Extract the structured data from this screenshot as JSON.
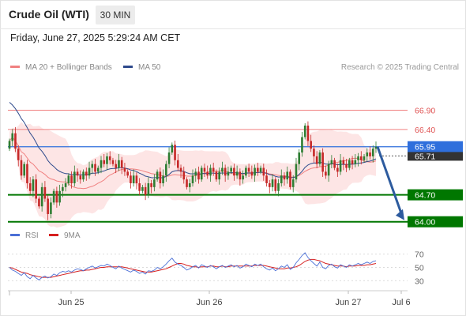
{
  "header": {
    "instrument": "Crude Oil (WTI)",
    "interval": "30 MIN",
    "datetime": "Friday, June 27, 2025 5:29:24 AM CET"
  },
  "legend": {
    "ma20_label": "MA 20 + Bollinger Bands",
    "ma50_label": "MA 50",
    "credit": "Research © 2025 Trading Central",
    "rsi_label": "RSI",
    "rsi_ma_label": "9MA"
  },
  "colors": {
    "ma20": "#f08080",
    "ma50": "#2e4a8c",
    "band_fill": "#fde0e0",
    "resistance": "#f08080",
    "support": "#007700",
    "current": "#2f6fdc",
    "last_price_bg": "#333333",
    "arrow": "#2d5b9e",
    "candle_up": "#2e7d32",
    "candle_down": "#c62828",
    "rsi": "#4a6fd6",
    "rsi_ma": "#d62020"
  },
  "chart_data": [
    {
      "type": "candlestick",
      "x_axis": {
        "ticks": [
          "Jun 25",
          "Jun 26",
          "Jun 27",
          "Jul 6"
        ]
      },
      "y_range": [
        63.85,
        67.3
      ],
      "price_levels": [
        {
          "value": 66.9,
          "label": "66.90",
          "kind": "resistance"
        },
        {
          "value": 66.4,
          "label": "66.40",
          "kind": "resistance"
        },
        {
          "value": 65.95,
          "label": "65.95",
          "kind": "current"
        },
        {
          "value": 65.71,
          "label": "65.71",
          "kind": "last"
        },
        {
          "value": 64.7,
          "label": "64.70",
          "kind": "support"
        },
        {
          "value": 64.0,
          "label": "64.00",
          "kind": "support"
        }
      ],
      "forecast": {
        "from": 65.95,
        "to": 64.0,
        "direction": "down"
      },
      "close": [
        66.1,
        66.3,
        65.9,
        65.6,
        65.2,
        65.5,
        65.0,
        64.8,
        65.1,
        64.6,
        64.4,
        64.9,
        64.6,
        64.2,
        64.5,
        64.8,
        64.5,
        64.8,
        64.9,
        65.0,
        65.2,
        65.0,
        65.3,
        65.2,
        65.1,
        65.3,
        65.2,
        65.4,
        65.5,
        65.3,
        65.4,
        65.6,
        65.5,
        65.7,
        65.6,
        65.5,
        65.4,
        65.6,
        65.4,
        65.3,
        65.2,
        65.0,
        65.2,
        65.0,
        64.8,
        64.9,
        64.7,
        65.0,
        64.9,
        65.1,
        65.3,
        65.0,
        65.2,
        65.5,
        65.8,
        66.0,
        65.6,
        65.4,
        65.3,
        65.1,
        64.9,
        65.0,
        65.2,
        65.3,
        65.1,
        65.4,
        65.3,
        65.2,
        65.4,
        65.3,
        65.1,
        65.3,
        65.4,
        65.2,
        65.3,
        65.4,
        65.2,
        65.3,
        65.1,
        65.2,
        65.4,
        65.3,
        65.2,
        65.4,
        65.3,
        65.4,
        65.2,
        65.0,
        64.9,
        65.1,
        64.8,
        65.0,
        65.2,
        65.1,
        65.3,
        64.9,
        65.1,
        65.5,
        65.8,
        66.2,
        66.5,
        66.1,
        65.9,
        65.7,
        65.5,
        65.8,
        65.3,
        65.2,
        65.5,
        65.6,
        65.4,
        65.3,
        65.6,
        65.5,
        65.4,
        65.6,
        65.5,
        65.6,
        65.7,
        65.6,
        65.7,
        65.8,
        65.7,
        65.9,
        65.95
      ]
    },
    {
      "type": "line",
      "name": "RSI",
      "y_range": [
        22,
        78
      ],
      "ticks": [
        70,
        50,
        30
      ],
      "rsi": [
        50,
        46,
        44,
        41,
        38,
        42,
        36,
        33,
        38,
        34,
        31,
        35,
        37,
        34,
        36,
        40,
        38,
        42,
        44,
        43,
        45,
        43,
        46,
        48,
        47,
        45,
        48,
        50,
        52,
        49,
        51,
        53,
        52,
        55,
        53,
        50,
        48,
        52,
        49,
        47,
        45,
        43,
        46,
        44,
        41,
        43,
        40,
        45,
        44,
        46,
        50,
        48,
        51,
        55,
        60,
        64,
        58,
        55,
        53,
        50,
        46,
        48,
        51,
        53,
        49,
        54,
        52,
        50,
        53,
        51,
        48,
        51,
        53,
        50,
        52,
        54,
        51,
        53,
        49,
        51,
        55,
        53,
        51,
        55,
        53,
        55,
        51,
        48,
        46,
        49,
        45,
        48,
        52,
        50,
        54,
        47,
        50,
        57,
        62,
        68,
        72,
        65,
        60,
        56,
        52,
        58,
        50,
        48,
        53,
        55,
        51,
        49,
        54,
        52,
        50,
        54,
        52,
        54,
        56,
        54,
        56,
        58,
        56,
        59,
        60
      ],
      "rsi_ma": [
        50,
        49,
        47,
        45,
        43,
        42,
        41,
        39,
        38,
        37,
        36,
        35,
        35,
        35,
        35,
        36,
        37,
        38,
        39,
        40,
        41,
        42,
        43,
        44,
        45,
        45,
        46,
        46,
        47,
        48,
        49,
        50,
        50,
        51,
        51,
        51,
        51,
        51,
        51,
        50,
        49,
        48,
        47,
        46,
        45,
        44,
        43,
        43,
        43,
        44,
        45,
        46,
        47,
        48,
        50,
        52,
        54,
        56,
        56,
        55,
        53,
        52,
        51,
        51,
        50,
        51,
        51,
        51,
        52,
        52,
        51,
        51,
        52,
        51,
        51,
        52,
        52,
        52,
        52,
        52,
        52,
        52,
        52,
        53,
        53,
        53,
        53,
        52,
        51,
        50,
        49,
        48,
        48,
        48,
        49,
        49,
        50,
        51,
        53,
        56,
        59,
        61,
        62,
        62,
        61,
        60,
        58,
        56,
        55,
        54,
        53,
        52,
        52,
        52,
        51,
        52,
        52,
        52,
        53,
        53,
        53,
        54,
        54,
        55,
        56
      ]
    }
  ]
}
